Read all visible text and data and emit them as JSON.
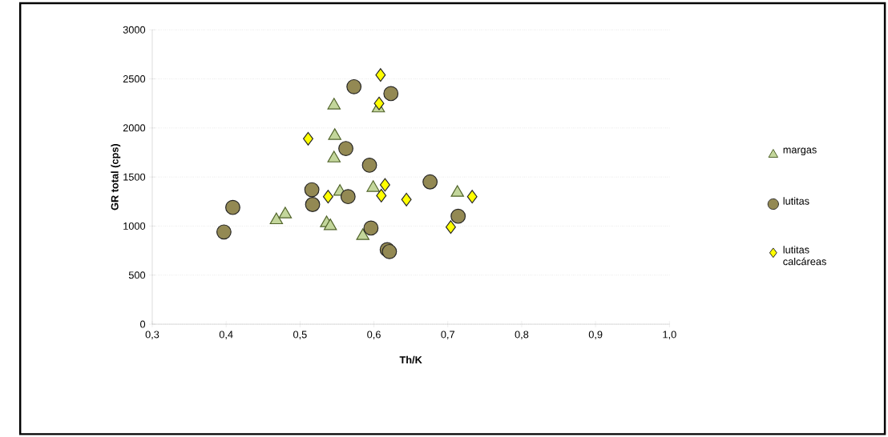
{
  "chart_data": {
    "type": "scatter",
    "xlabel": "Th/K",
    "ylabel": "GR total (cps)",
    "xlim": [
      0.3,
      1.0
    ],
    "ylim": [
      0,
      3000
    ],
    "xticks": [
      {
        "value": 0.3,
        "label": "0,3"
      },
      {
        "value": 0.4,
        "label": "0,4"
      },
      {
        "value": 0.5,
        "label": "0,5"
      },
      {
        "value": 0.6,
        "label": "0,6"
      },
      {
        "value": 0.7,
        "label": "0,7"
      },
      {
        "value": 0.8,
        "label": "0,8"
      },
      {
        "value": 0.9,
        "label": "0,9"
      },
      {
        "value": 1.0,
        "label": "1,0"
      }
    ],
    "yticks": [
      0,
      500,
      1000,
      1500,
      2000,
      2500,
      3000
    ],
    "grid": "y",
    "legend": "right",
    "series": [
      {
        "name": "margas",
        "color": "#c3d69b",
        "marker": "triangle",
        "x": [
          0.468,
          0.48,
          0.546,
          0.547,
          0.546,
          0.554,
          0.536,
          0.541,
          0.585,
          0.606,
          0.599,
          0.713
        ],
        "values": [
          1060,
          1120,
          2230,
          1920,
          1690,
          1350,
          1030,
          1000,
          900,
          2200,
          1390,
          1340
        ]
      },
      {
        "name": "lutitas",
        "color": "#938953",
        "marker": "circle",
        "x": [
          0.397,
          0.409,
          0.516,
          0.517,
          0.573,
          0.623,
          0.562,
          0.594,
          0.565,
          0.676,
          0.596,
          0.714,
          0.618,
          0.621
        ],
        "values": [
          940,
          1190,
          1370,
          1220,
          2420,
          2350,
          1790,
          1620,
          1300,
          1450,
          980,
          1100,
          760,
          740
        ]
      },
      {
        "name": "lutitas calcáreas",
        "color": "#ffff00",
        "marker": "diamond",
        "x": [
          0.609,
          0.607,
          0.511,
          0.538,
          0.615,
          0.61,
          0.644,
          0.704,
          0.733
        ],
        "values": [
          2540,
          2250,
          1890,
          1300,
          1420,
          1310,
          1270,
          990,
          1300
        ]
      }
    ]
  }
}
